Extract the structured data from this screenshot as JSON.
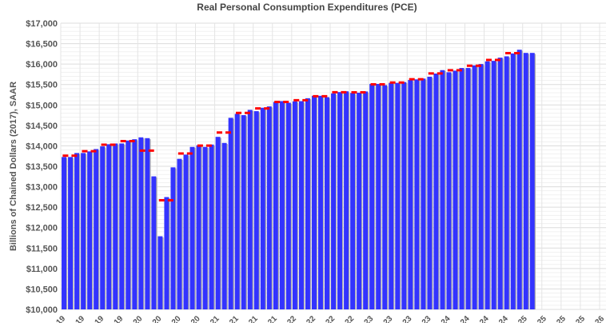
{
  "chart_data": {
    "type": "bar",
    "title": "Real Personal Consumption Expenditures (PCE)",
    "xlabel": "",
    "ylabel": "Billions of Chained Dollars (2017), SAAR",
    "ylim": [
      10000,
      17000
    ],
    "y_tick_step": 500,
    "y_tick_labels": [
      "$10,000",
      "$10,500",
      "$11,000",
      "$11,500",
      "$12,000",
      "$12,500",
      "$13,000",
      "$13,500",
      "$14,000",
      "$14,500",
      "$15,000",
      "$15,500",
      "$16,000",
      "$16,500",
      "$17,000"
    ],
    "x_range": [
      "2019-01",
      "2026-01"
    ],
    "x_tick_labels": [
      "19",
      "19",
      "19",
      "19",
      "20",
      "20",
      "20",
      "20",
      "21",
      "21",
      "21",
      "21",
      "22",
      "22",
      "22",
      "22",
      "23",
      "23",
      "23",
      "23",
      "24",
      "24",
      "24",
      "24",
      "25",
      "25",
      "25",
      "25",
      "26"
    ],
    "grid": true,
    "colors": {
      "bars": "#3333ff",
      "bar_shadow": "#b0b0b0",
      "quarterly_avg": "#ff0000",
      "grid": "#e4e4e4"
    },
    "series": [
      {
        "type": "bar",
        "frequency": "monthly",
        "start": "2019-01",
        "values": [
          13727,
          13727,
          13825,
          13825,
          13864,
          13922,
          13987,
          14039,
          14058,
          14058,
          14130,
          14162,
          14208,
          14188,
          13254,
          11788,
          12747,
          13474,
          13682,
          13786,
          13974,
          14013,
          13974,
          14032,
          14220,
          14071,
          14685,
          14782,
          14751,
          14880,
          14848,
          14932,
          14965,
          15074,
          15093,
          15055,
          15088,
          15093,
          15165,
          15224,
          15224,
          15191,
          15282,
          15315,
          15334,
          15295,
          15300,
          15330,
          15515,
          15515,
          15485,
          15540,
          15540,
          15560,
          15612,
          15626,
          15645,
          15690,
          15768,
          15852,
          15800,
          15839,
          15904,
          15904,
          15969,
          16001,
          16066,
          16079,
          16157,
          16189,
          16260,
          16351,
          16273,
          16273
        ]
      },
      {
        "type": "dashed-line",
        "frequency": "quarterly",
        "start": "2019-Q1",
        "values": [
          13760,
          13870,
          14028,
          14117,
          13883,
          12670,
          13814,
          14006,
          14325,
          14804,
          14915,
          15074,
          15115,
          15213,
          15310,
          15308,
          15505,
          15547,
          15628,
          15770,
          15848,
          15958,
          16101,
          16267
        ]
      }
    ]
  }
}
